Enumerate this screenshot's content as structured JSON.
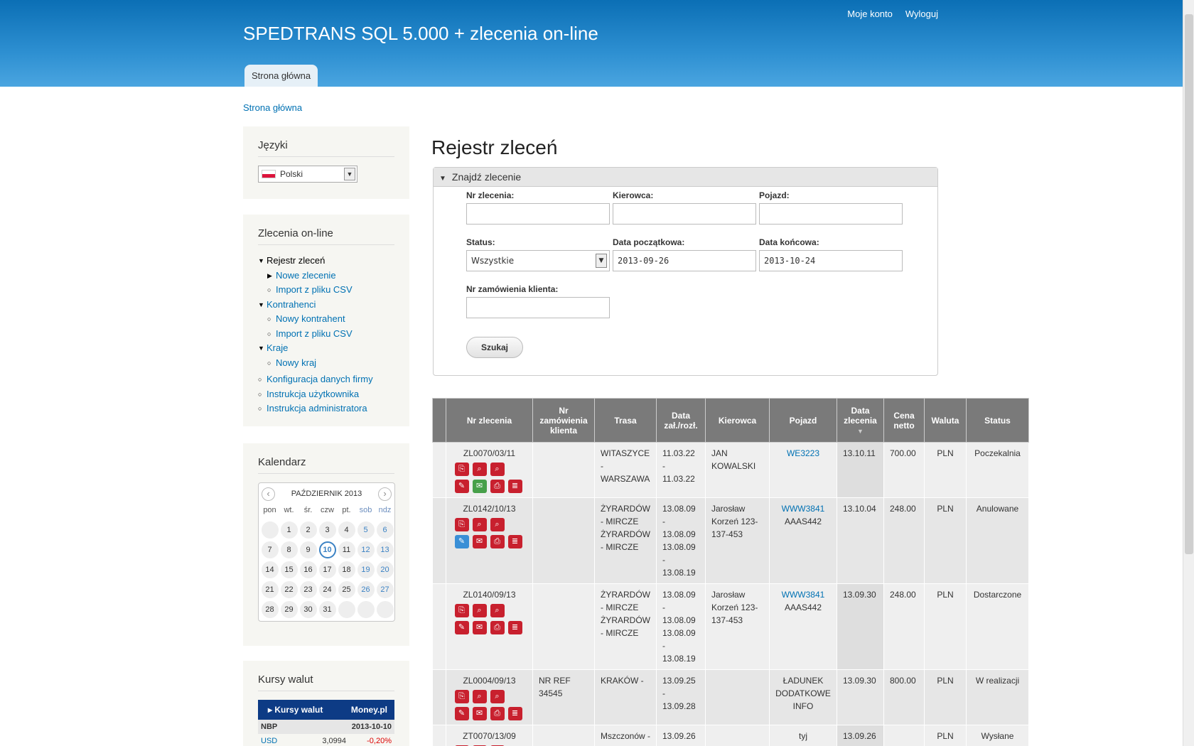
{
  "header": {
    "site_name": "SPEDTRANS SQL 5.000 + zlecenia on-line",
    "menu": [
      "Moje konto",
      "Wyloguj"
    ],
    "tab": "Strona główna"
  },
  "breadcrumb": "Strona główna",
  "languages": {
    "title": "Języki",
    "selected": "Polski"
  },
  "nav": {
    "title": "Zlecenia on-line",
    "items": [
      {
        "label": "Rejestr zleceń"
      },
      {
        "label": "Nowe zlecenie"
      },
      {
        "label": "Import z pliku CSV"
      },
      {
        "label": "Kontrahenci"
      },
      {
        "label": "Nowy kontrahent"
      },
      {
        "label": "Import z pliku CSV"
      },
      {
        "label": "Kraje"
      },
      {
        "label": "Nowy kraj"
      },
      {
        "label": "Konfiguracja danych firmy"
      },
      {
        "label": "Instrukcja użytkownika"
      },
      {
        "label": "Instrukcja administratora"
      }
    ]
  },
  "calendar": {
    "title": "Kalendarz",
    "month": "PAŹDZIERNIK 2013",
    "days": [
      "pon",
      "wt.",
      "śr.",
      "czw",
      "pt.",
      "sob",
      "ndz"
    ],
    "today": "10"
  },
  "currency": {
    "title": "Kursy walut",
    "widget_label": "Kursy walut",
    "brand": "Money.pl",
    "source": "NBP",
    "date": "2013-10-10",
    "rows": [
      {
        "code": "USD",
        "rate": "3,0994",
        "change": "-0,20%"
      }
    ]
  },
  "main": {
    "title": "Rejestr zleceń",
    "search": {
      "legend": "Znajdź zlecenie",
      "order_no_label": "Nr zlecenia:",
      "driver_label": "Kierowca:",
      "vehicle_label": "Pojazd:",
      "status_label": "Status:",
      "status_value": "Wszystkie",
      "date_from_label": "Data początkowa:",
      "date_from": "2013-09-26",
      "date_to_label": "Data końcowa:",
      "date_to": "2013-10-24",
      "client_order_label": "Nr zamówienia klienta:",
      "search_button": "Szukaj"
    }
  },
  "table": {
    "headers": [
      "Nr zlecenia",
      "Nr zamówienia klienta",
      "Trasa",
      "Data zał./rozł.",
      "Kierowca",
      "Pojazd",
      "Data zlecenia",
      "Cena netto",
      "Waluta",
      "Status"
    ],
    "rows": [
      {
        "nr": "ZL0070/03/11",
        "client": "",
        "route": "WITASZYCE - WARSZAWA",
        "dates": "11.03.22 - 11.03.22",
        "driver": "JAN KOWALSKI",
        "vehicle": "WE3223",
        "vehicle2": "",
        "order_date": "13.10.11",
        "price": "700.00",
        "currency": "PLN",
        "status": "Poczekalnia"
      },
      {
        "nr": "ZL0142/10/13",
        "client": "",
        "route": "ŻYRARDÓW - MIRCZE ŻYRARDÓW - MIRCZE",
        "dates": "13.08.09 - 13.08.09 13.08.09 - 13.08.19",
        "driver": "Jarosław Korzeń 123-137-453",
        "vehicle": "WWW3841",
        "vehicle2": "AAAS442",
        "order_date": "13.10.04",
        "price": "248.00",
        "currency": "PLN",
        "status": "Anulowane"
      },
      {
        "nr": "ZL0140/09/13",
        "client": "",
        "route": "ŻYRARDÓW - MIRCZE ŻYRARDÓW - MIRCZE",
        "dates": "13.08.09 - 13.08.09 13.08.09 - 13.08.19",
        "driver": "Jarosław Korzeń 123-137-453",
        "vehicle": "WWW3841",
        "vehicle2": "AAAS442",
        "order_date": "13.09.30",
        "price": "248.00",
        "currency": "PLN",
        "status": "Dostarczone"
      },
      {
        "nr": "ZL0004/09/13",
        "client": "NR REF 34545",
        "route": "KRAKÓW -",
        "dates": "13.09.25 - 13.09.28",
        "driver": "",
        "vehicle": "",
        "vehicle2": "ŁADUNEK DODATKOWE INFO",
        "order_date": "13.09.30",
        "price": "800.00",
        "currency": "PLN",
        "status": "W realizacji"
      },
      {
        "nr": "ZT0070/13/09",
        "client": "",
        "route": "Mszczonów - ---",
        "dates": "13.09.26 - ---",
        "driver": "",
        "vehicle": "",
        "vehicle2": "tyj",
        "order_date": "13.09.26",
        "price": "",
        "currency": "PLN",
        "status": "Wysłane"
      }
    ]
  },
  "colors": {
    "header": "#1a7ec4",
    "link": "#0071b3",
    "icon_red": "#c8202e",
    "th_bg": "#7a7a7a"
  }
}
